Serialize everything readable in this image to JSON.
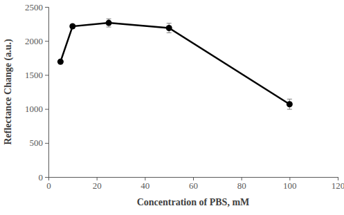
{
  "chart_data": {
    "type": "line",
    "xlabel": "Concentration of PBS, mM",
    "ylabel": "Reflectance Change (a.u.)",
    "x": [
      5,
      10,
      25,
      50,
      100
    ],
    "values": [
      1695,
      2215,
      2265,
      2190,
      1070
    ],
    "errors": [
      10,
      25,
      60,
      70,
      75
    ],
    "color": "#000000",
    "marker": "circle",
    "line_style": "solid",
    "grid": false,
    "xlim": [
      0,
      120
    ],
    "xticks": [
      0,
      20,
      40,
      60,
      80,
      100,
      120
    ],
    "ylim": [
      0,
      2500
    ],
    "yticks": [
      0,
      500,
      1000,
      1500,
      2000,
      2500
    ]
  }
}
